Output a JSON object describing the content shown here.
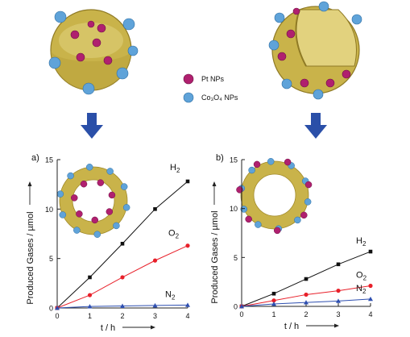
{
  "legend": {
    "items": [
      {
        "label": "Pt NPs",
        "color": "#b0206f"
      },
      {
        "label": "Co₃O₄ NPs",
        "color": "#5fa3d9"
      }
    ]
  },
  "colors": {
    "shell": "#c9b34a",
    "shell_dark": "#a18a2a",
    "arrow": "#2a4fa8",
    "H2": "#111111",
    "O2": "#e8202a",
    "N2": "#2e4fb0"
  },
  "chart_data": [
    {
      "type": "line",
      "panel_label": "a)",
      "xlabel": "t / h",
      "ylabel": "Produced Gases / µmol",
      "xlim": [
        0,
        4
      ],
      "ylim": [
        0,
        15
      ],
      "xticks": [
        "0",
        "1",
        "2",
        "3",
        "4"
      ],
      "yticks": [
        "0",
        "5",
        "10",
        "15"
      ],
      "x": [
        0,
        1,
        2,
        3,
        4
      ],
      "series": [
        {
          "name": "H2",
          "marker": "square",
          "values": [
            0,
            3.1,
            6.5,
            10.0,
            12.8
          ]
        },
        {
          "name": "O2",
          "marker": "circle",
          "values": [
            0,
            1.3,
            3.1,
            4.8,
            6.3
          ]
        },
        {
          "name": "N2",
          "marker": "triangle",
          "values": [
            0,
            0.15,
            0.2,
            0.25,
            0.3
          ]
        }
      ]
    },
    {
      "type": "line",
      "panel_label": "b)",
      "xlabel": "t / h",
      "ylabel": "Produced Gases / µmol",
      "xlim": [
        0,
        4
      ],
      "ylim": [
        0,
        15
      ],
      "xticks": [
        "0",
        "1",
        "2",
        "3",
        "4"
      ],
      "yticks": [
        "0",
        "5",
        "10",
        "15"
      ],
      "x": [
        0,
        1,
        2,
        3,
        4
      ],
      "series": [
        {
          "name": "H2",
          "marker": "square",
          "values": [
            0,
            1.3,
            2.8,
            4.3,
            5.6
          ]
        },
        {
          "name": "O2",
          "marker": "circle",
          "values": [
            0,
            0.6,
            1.2,
            1.6,
            2.1
          ]
        },
        {
          "name": "N2",
          "marker": "triangle",
          "values": [
            0,
            0.25,
            0.4,
            0.55,
            0.75
          ]
        }
      ]
    }
  ]
}
